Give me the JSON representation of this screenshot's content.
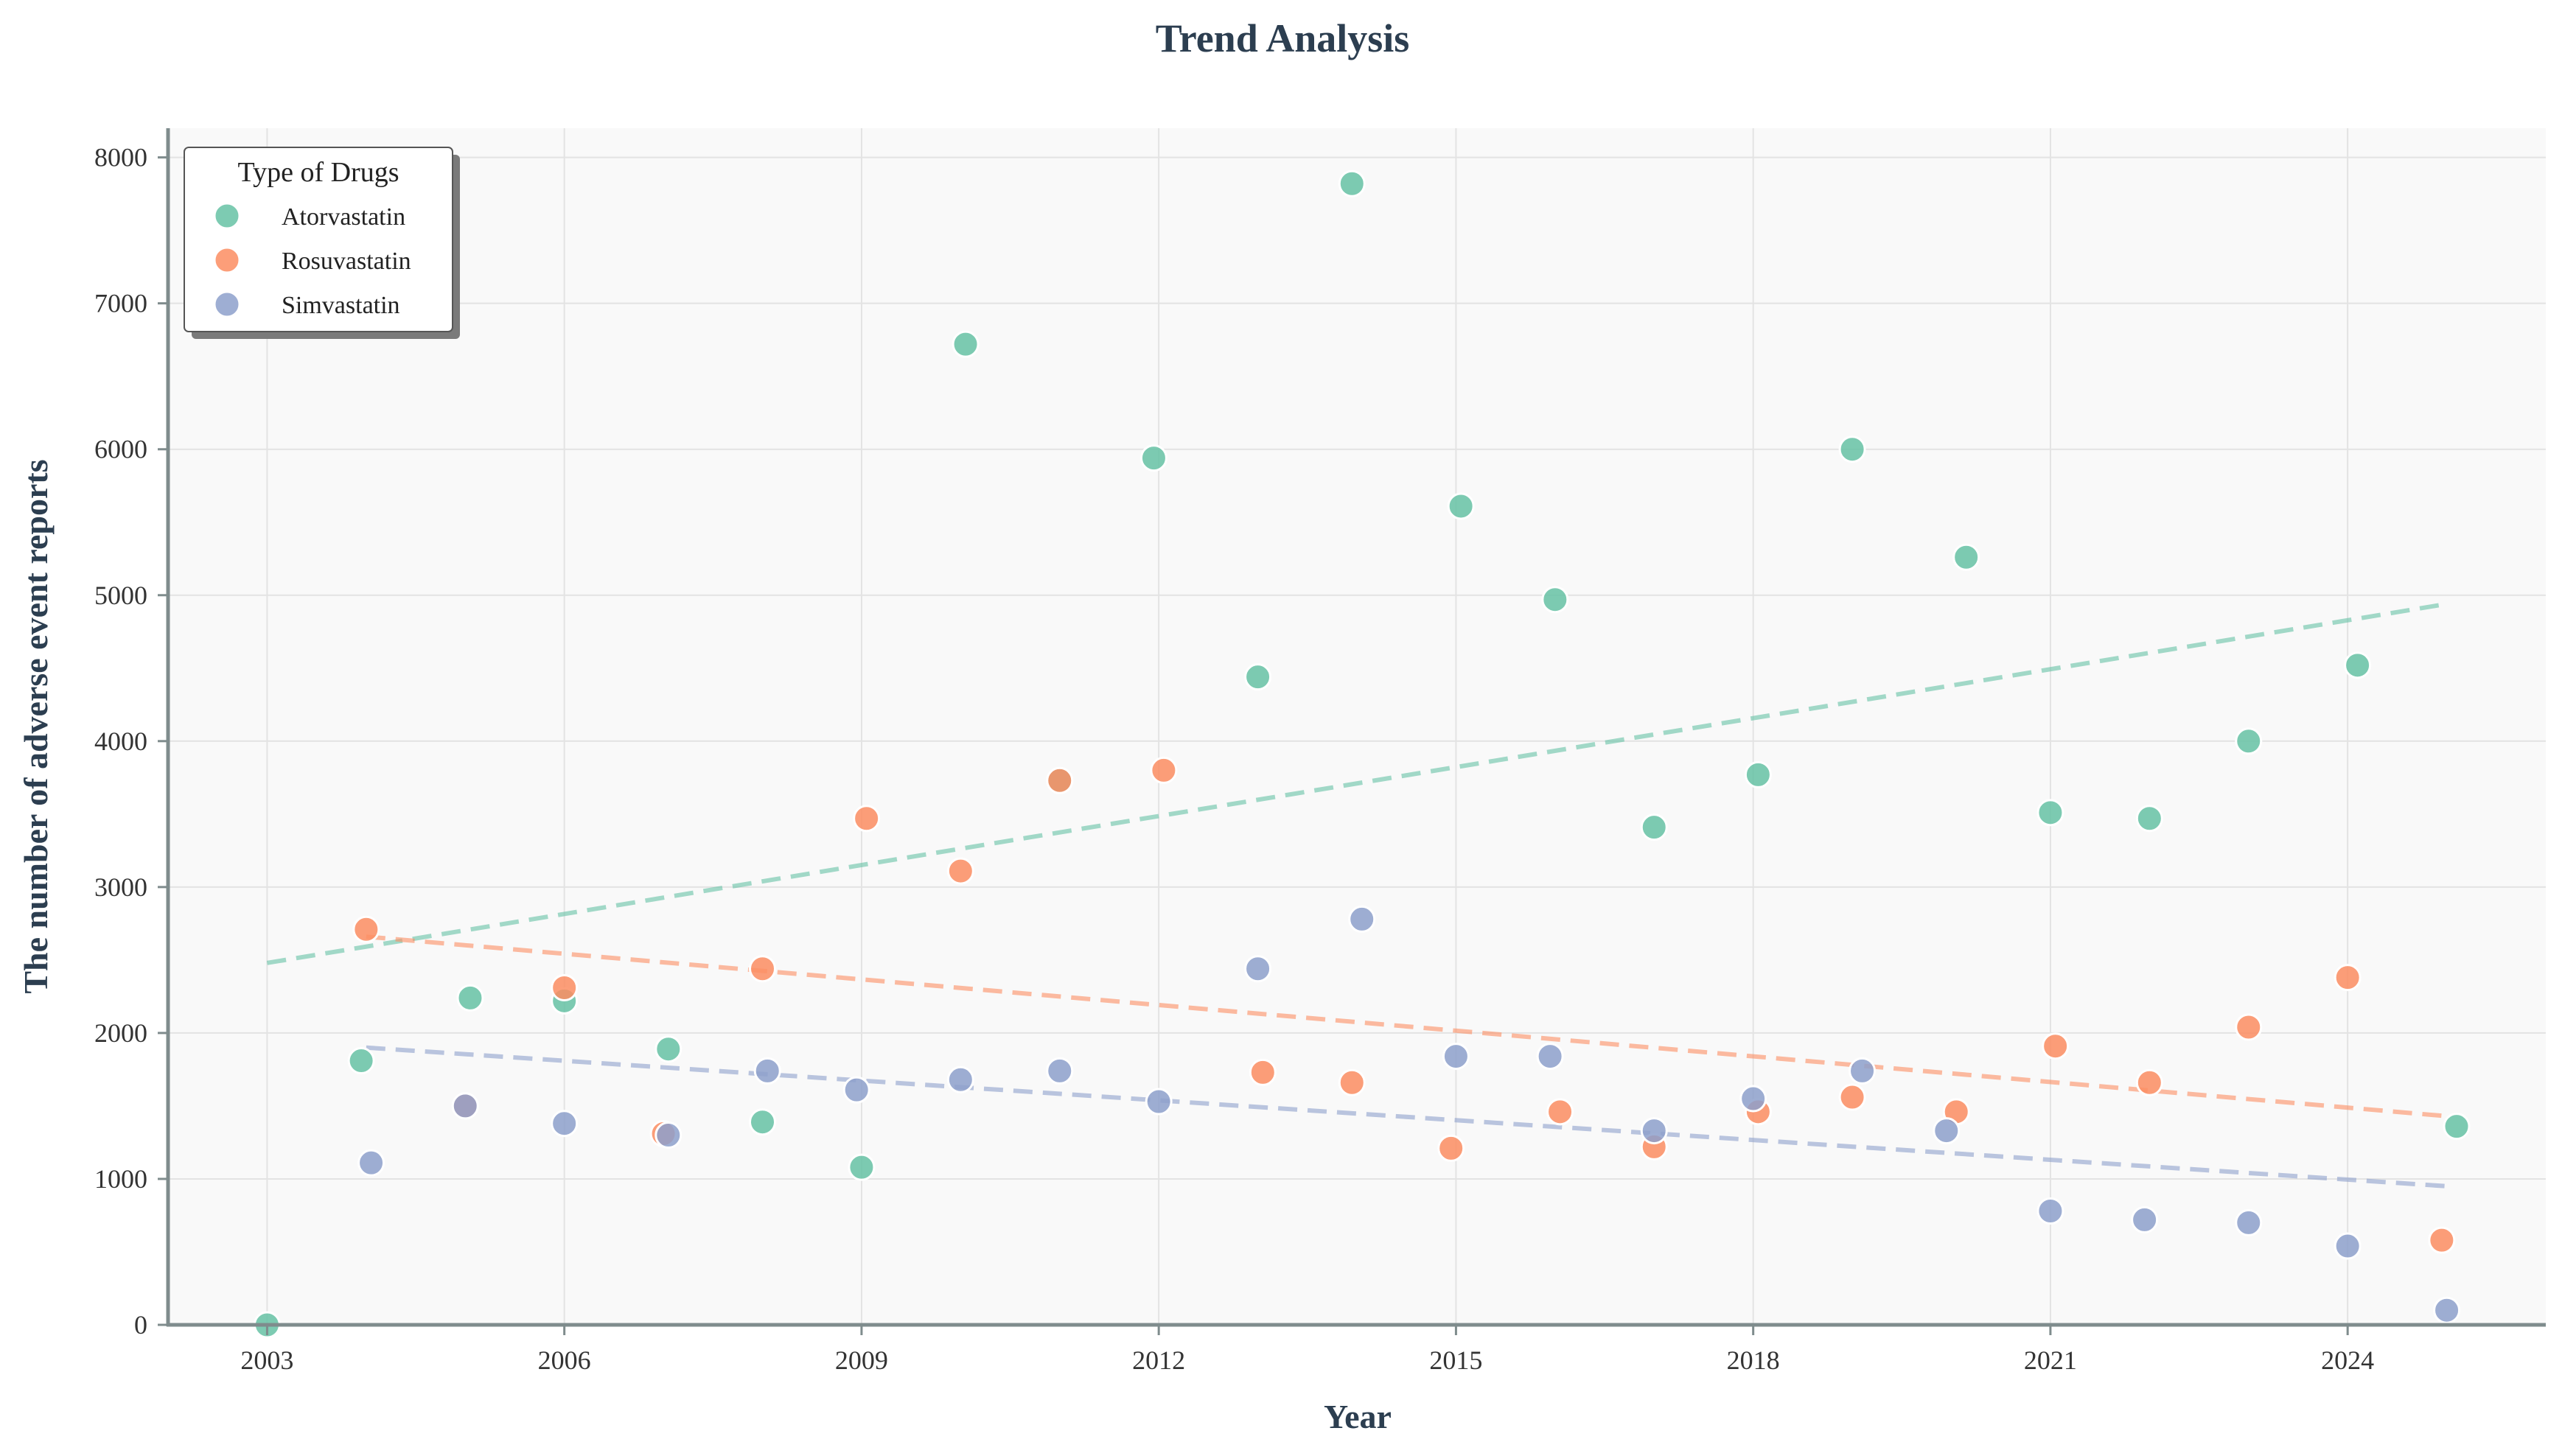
{
  "chart_data": {
    "type": "scatter",
    "title": "Trend Analysis",
    "xlabel": "Year",
    "ylabel": "The number of adverse event reports",
    "xlim": [
      2002.0,
      2026.0
    ],
    "ylim": [
      0,
      8200
    ],
    "xticks": [
      2003,
      2006,
      2009,
      2012,
      2015,
      2018,
      2021,
      2024
    ],
    "yticks": [
      0,
      1000,
      2000,
      3000,
      4000,
      5000,
      6000,
      7000,
      8000
    ],
    "xtick_labels": [
      "2003",
      "2006",
      "2009",
      "2012",
      "2015",
      "2018",
      "2021",
      "2024"
    ],
    "ytick_labels": [
      "0",
      "1000",
      "2000",
      "3000",
      "4000",
      "5000",
      "6000",
      "7000",
      "8000"
    ],
    "grid": true,
    "legend": {
      "title": "Type of Drugs",
      "position": "top-left"
    },
    "trendlines": "dashed linear fit per series",
    "series": [
      {
        "name": "Atorvastatin",
        "color": "#66c2a5",
        "points": [
          [
            2003.0,
            0
          ],
          [
            2003.95,
            1810
          ],
          [
            2005.05,
            2240
          ],
          [
            2006.0,
            2220
          ],
          [
            2007.05,
            1890
          ],
          [
            2008.0,
            1390
          ],
          [
            2009.0,
            1080
          ],
          [
            2010.05,
            6720
          ],
          [
            2011.0,
            3730
          ],
          [
            2011.95,
            5940
          ],
          [
            2013.0,
            4440
          ],
          [
            2013.95,
            7820
          ],
          [
            2015.05,
            5610
          ],
          [
            2016.0,
            4970
          ],
          [
            2017.0,
            3410
          ],
          [
            2018.05,
            3770
          ],
          [
            2019.0,
            6000
          ],
          [
            2020.15,
            5260
          ],
          [
            2021.0,
            3510
          ],
          [
            2022.0,
            3470
          ],
          [
            2023.0,
            4000
          ],
          [
            2024.1,
            4520
          ],
          [
            2025.1,
            1360
          ]
        ],
        "trend": [
          [
            2003.0,
            2480
          ],
          [
            2025.0,
            4940
          ]
        ]
      },
      {
        "name": "Rosuvastatin",
        "color": "#fc8d62",
        "points": [
          [
            2004.0,
            2710
          ],
          [
            2005.0,
            1500
          ],
          [
            2006.0,
            2310
          ],
          [
            2007.0,
            1310
          ],
          [
            2008.0,
            2440
          ],
          [
            2009.05,
            3470
          ],
          [
            2010.0,
            3110
          ],
          [
            2011.0,
            3730
          ],
          [
            2012.05,
            3800
          ],
          [
            2013.05,
            1730
          ],
          [
            2013.95,
            1660
          ],
          [
            2014.95,
            1210
          ],
          [
            2016.05,
            1460
          ],
          [
            2017.0,
            1220
          ],
          [
            2018.05,
            1460
          ],
          [
            2019.0,
            1560
          ],
          [
            2020.05,
            1460
          ],
          [
            2021.05,
            1910
          ],
          [
            2022.0,
            1660
          ],
          [
            2023.0,
            2040
          ],
          [
            2024.0,
            2380
          ],
          [
            2024.95,
            580
          ]
        ],
        "trend": [
          [
            2004.0,
            2660
          ],
          [
            2025.0,
            1430
          ]
        ]
      },
      {
        "name": "Simvastatin",
        "color": "#8da0cb",
        "points": [
          [
            2004.05,
            1110
          ],
          [
            2005.0,
            1500
          ],
          [
            2006.0,
            1380
          ],
          [
            2007.05,
            1300
          ],
          [
            2008.05,
            1740
          ],
          [
            2008.95,
            1610
          ],
          [
            2010.0,
            1680
          ],
          [
            2011.0,
            1740
          ],
          [
            2012.0,
            1530
          ],
          [
            2013.0,
            2440
          ],
          [
            2014.05,
            2780
          ],
          [
            2015.0,
            1840
          ],
          [
            2015.95,
            1840
          ],
          [
            2017.0,
            1330
          ],
          [
            2018.0,
            1550
          ],
          [
            2019.1,
            1740
          ],
          [
            2019.95,
            1330
          ],
          [
            2021.0,
            780
          ],
          [
            2021.95,
            720
          ],
          [
            2023.0,
            700
          ],
          [
            2024.0,
            540
          ],
          [
            2025.0,
            100
          ]
        ],
        "trend": [
          [
            2004.0,
            1900
          ],
          [
            2025.0,
            950
          ]
        ]
      }
    ]
  },
  "style": {
    "title_color": "#2c3e50",
    "axis_label_color": "#2c3e50",
    "axis_color": "#7f8c8d",
    "plot_background": "#f9f9f9",
    "grid_color": "#e3e3e3"
  }
}
